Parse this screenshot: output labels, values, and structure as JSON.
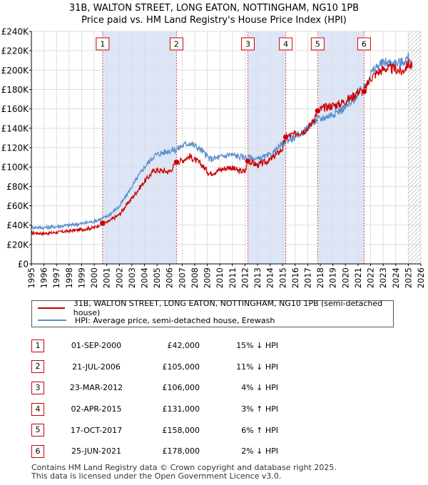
{
  "title": {
    "line1": "31B, WALTON STREET, LONG EATON, NOTTINGHAM, NG10 1PB",
    "line2": "Price paid vs. HM Land Registry's House Price Index (HPI)"
  },
  "colors": {
    "price_line": "#cc0000",
    "hpi_line": "#5b8fcc",
    "shade": "#dde6f7",
    "grid": "#dddddd",
    "hatch": "#888888"
  },
  "chart_data": {
    "type": "line",
    "x_range": [
      1995,
      2026
    ],
    "ylim": [
      0,
      240000
    ],
    "y_ticks": [
      {
        "value": 0,
        "label": "£0"
      },
      {
        "value": 20000,
        "label": "£20K"
      },
      {
        "value": 40000,
        "label": "£40K"
      },
      {
        "value": 60000,
        "label": "£60K"
      },
      {
        "value": 80000,
        "label": "£80K"
      },
      {
        "value": 100000,
        "label": "£100K"
      },
      {
        "value": 120000,
        "label": "£120K"
      },
      {
        "value": 140000,
        "label": "£140K"
      },
      {
        "value": 160000,
        "label": "£160K"
      },
      {
        "value": 180000,
        "label": "£180K"
      },
      {
        "value": 200000,
        "label": "£200K"
      },
      {
        "value": 220000,
        "label": "£220K"
      },
      {
        "value": 240000,
        "label": "£240K"
      }
    ],
    "x_ticks": [
      "1995",
      "1996",
      "1997",
      "1998",
      "1999",
      "2000",
      "2001",
      "2002",
      "2003",
      "2004",
      "2005",
      "2006",
      "2007",
      "2008",
      "2009",
      "2010",
      "2011",
      "2012",
      "2013",
      "2014",
      "2015",
      "2016",
      "2017",
      "2018",
      "2019",
      "2020",
      "2021",
      "2022",
      "2023",
      "2024",
      "2025",
      "2026"
    ],
    "hatched_from": 2025.0,
    "shaded_spans": [
      [
        2000.67,
        2006.55
      ],
      [
        2012.23,
        2015.25
      ],
      [
        2017.79,
        2021.48
      ]
    ],
    "series": [
      {
        "name": "31B, WALTON STREET, LONG EATON, NOTTINGHAM, NG10 1PB (semi-detached house)",
        "points": [
          [
            1995,
            32000
          ],
          [
            1996,
            31500
          ],
          [
            1997,
            32500
          ],
          [
            1998,
            34000
          ],
          [
            1999,
            35500
          ],
          [
            2000,
            37500
          ],
          [
            2000.67,
            42000
          ],
          [
            2001,
            42500
          ],
          [
            2002,
            51000
          ],
          [
            2003,
            68000
          ],
          [
            2004,
            85000
          ],
          [
            2004.8,
            97000
          ],
          [
            2005.5,
            96000
          ],
          [
            2006,
            95000
          ],
          [
            2006.55,
            105000
          ],
          [
            2007,
            107000
          ],
          [
            2007.6,
            111000
          ],
          [
            2008.5,
            103000
          ],
          [
            2009.2,
            93000
          ],
          [
            2010,
            97000
          ],
          [
            2010.8,
            100000
          ],
          [
            2011.5,
            96000
          ],
          [
            2012,
            95000
          ],
          [
            2012.23,
            106000
          ],
          [
            2013,
            102000
          ],
          [
            2014,
            107000
          ],
          [
            2015,
            119000
          ],
          [
            2015.25,
            131000
          ],
          [
            2016,
            134000
          ],
          [
            2016.8,
            138000
          ],
          [
            2017.3,
            145000
          ],
          [
            2017.79,
            158000
          ],
          [
            2018.5,
            162000
          ],
          [
            2019.5,
            165000
          ],
          [
            2020.5,
            172000
          ],
          [
            2021,
            178000
          ],
          [
            2021.48,
            178000
          ],
          [
            2022,
            192000
          ],
          [
            2022.6,
            198000
          ],
          [
            2023.2,
            202000
          ],
          [
            2024,
            201000
          ],
          [
            2024.5,
            198000
          ],
          [
            2025,
            207000
          ],
          [
            2025.3,
            203000
          ]
        ]
      },
      {
        "name": "HPI: Average price, semi-detached house, Erewash",
        "points": [
          [
            1995,
            38000
          ],
          [
            1996,
            37500
          ],
          [
            1997,
            38500
          ],
          [
            1998,
            40000
          ],
          [
            1999,
            41500
          ],
          [
            2000,
            44000
          ],
          [
            2000.67,
            47000
          ],
          [
            2001,
            49000
          ],
          [
            2002,
            59000
          ],
          [
            2003,
            80000
          ],
          [
            2004,
            100000
          ],
          [
            2004.8,
            112000
          ],
          [
            2005.5,
            115000
          ],
          [
            2006,
            117000
          ],
          [
            2006.55,
            118000
          ],
          [
            2007,
            122000
          ],
          [
            2007.6,
            125000
          ],
          [
            2008.5,
            118000
          ],
          [
            2009.2,
            108000
          ],
          [
            2010,
            110000
          ],
          [
            2010.8,
            113000
          ],
          [
            2011.5,
            111000
          ],
          [
            2012,
            110000
          ],
          [
            2012.23,
            110000
          ],
          [
            2013,
            108000
          ],
          [
            2014,
            112000
          ],
          [
            2015,
            124000
          ],
          [
            2015.25,
            127000
          ],
          [
            2016,
            131000
          ],
          [
            2016.8,
            138000
          ],
          [
            2017.3,
            145000
          ],
          [
            2017.79,
            149000
          ],
          [
            2018.5,
            152000
          ],
          [
            2019.5,
            158000
          ],
          [
            2020.5,
            166000
          ],
          [
            2021,
            176000
          ],
          [
            2021.48,
            182000
          ],
          [
            2022,
            196000
          ],
          [
            2022.6,
            205000
          ],
          [
            2023.2,
            208000
          ],
          [
            2024,
            207000
          ],
          [
            2024.5,
            208000
          ],
          [
            2025,
            213000
          ],
          [
            2025.3,
            208000
          ]
        ]
      }
    ],
    "sales": [
      {
        "n": "1",
        "x": 2000.67,
        "y": 42000
      },
      {
        "n": "2",
        "x": 2006.55,
        "y": 105000
      },
      {
        "n": "3",
        "x": 2012.23,
        "y": 106000
      },
      {
        "n": "4",
        "x": 2015.25,
        "y": 131000
      },
      {
        "n": "5",
        "x": 2017.79,
        "y": 158000
      },
      {
        "n": "6",
        "x": 2021.48,
        "y": 178000
      }
    ]
  },
  "legend": {
    "price_label": "31B, WALTON STREET, LONG EATON, NOTTINGHAM, NG10 1PB (semi-detached house)",
    "hpi_label": "HPI: Average price, semi-detached house, Erewash"
  },
  "sales_table": [
    {
      "n": "1",
      "date": "01-SEP-2000",
      "price": "£42,000",
      "hpi": "15% ↓ HPI"
    },
    {
      "n": "2",
      "date": "21-JUL-2006",
      "price": "£105,000",
      "hpi": "11% ↓ HPI"
    },
    {
      "n": "3",
      "date": "23-MAR-2012",
      "price": "£106,000",
      "hpi": "4% ↓ HPI"
    },
    {
      "n": "4",
      "date": "02-APR-2015",
      "price": "£131,000",
      "hpi": "3% ↑ HPI"
    },
    {
      "n": "5",
      "date": "17-OCT-2017",
      "price": "£158,000",
      "hpi": "6% ↑ HPI"
    },
    {
      "n": "6",
      "date": "25-JUN-2021",
      "price": "£178,000",
      "hpi": "2% ↓ HPI"
    }
  ],
  "footer": {
    "line1": "Contains HM Land Registry data © Crown copyright and database right 2025.",
    "line2": "This data is licensed under the Open Government Licence v3.0."
  }
}
